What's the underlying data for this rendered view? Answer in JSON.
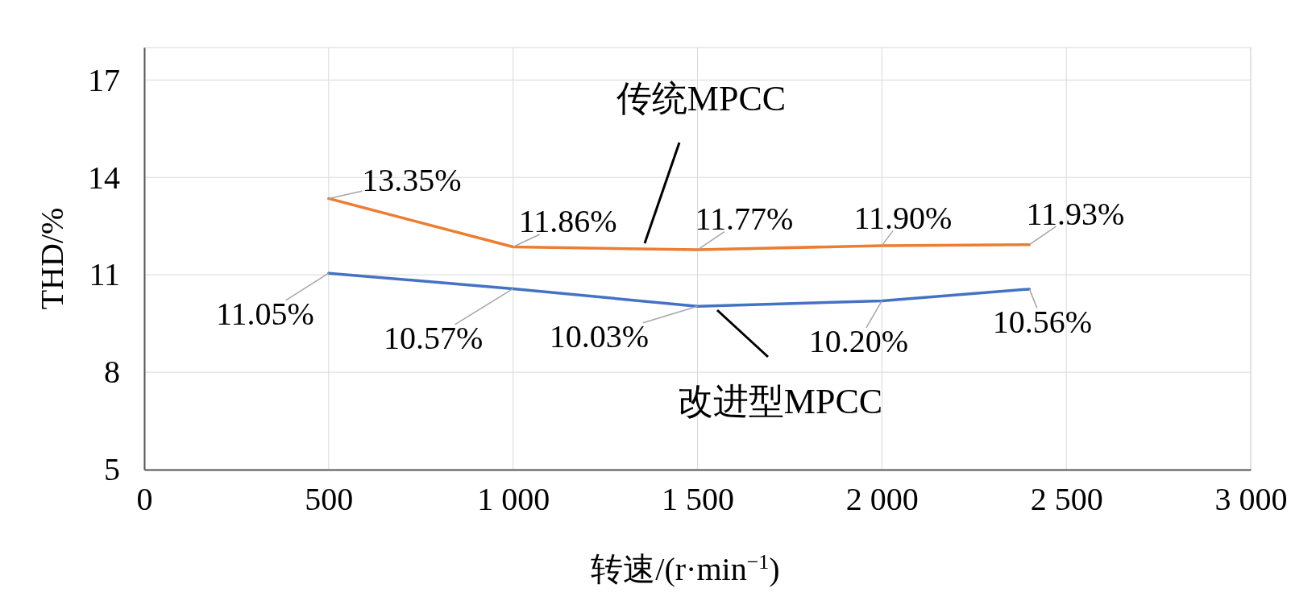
{
  "chart_data": {
    "type": "line",
    "xlabel": "转速/(r·min$^{−1}$)",
    "ylabel": "THD/%",
    "x": [
      500,
      1000,
      1500,
      2000,
      2400
    ],
    "series": [
      {
        "name": "传统MPCC",
        "color": "#ed7d31",
        "values": [
          13.35,
          11.86,
          11.77,
          11.9,
          11.93
        ],
        "value_labels": [
          "13.35%",
          "11.86%",
          "11.77%",
          "11.90%",
          "11.93%"
        ]
      },
      {
        "name": "改进型MPCC",
        "color": "#4472c4",
        "values": [
          11.05,
          10.57,
          10.03,
          10.2,
          10.56
        ],
        "value_labels": [
          "11.05%",
          "10.57%",
          "10.03%",
          "10.20%",
          "10.56%"
        ]
      }
    ],
    "xlim": [
      0,
      3000
    ],
    "xticks": [
      0,
      500,
      {
        "value": 1000,
        "label": "1 000"
      },
      {
        "value": 1500,
        "label": "1 500"
      },
      {
        "value": 2000,
        "label": "2 000"
      },
      {
        "value": 2500,
        "label": "2 500"
      },
      {
        "value": 3000,
        "label": "3 000"
      }
    ],
    "ylim": [
      5,
      18
    ],
    "yticks": [
      5,
      8,
      11,
      14,
      17
    ],
    "grid": true,
    "legend": false,
    "marker": "none",
    "line_style": "solid"
  }
}
